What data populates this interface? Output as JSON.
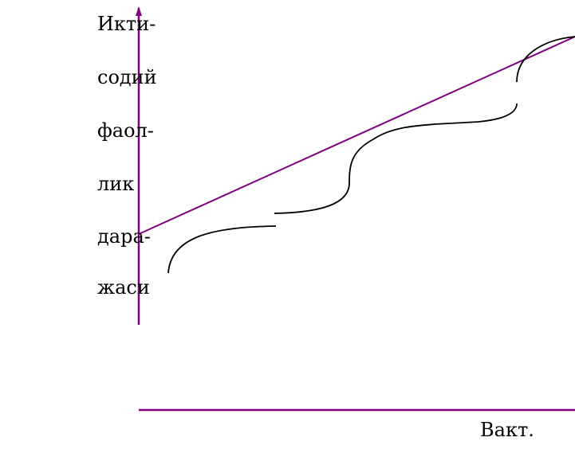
{
  "diagram": {
    "y_axis_label_lines": [
      "Икти-",
      "содий",
      "фаол-",
      "лик",
      "дара-",
      "жаси"
    ],
    "x_axis_label": "Вакт.",
    "colors": {
      "axis": "#800080",
      "trend_line": "#800080",
      "curve": "#000000",
      "background": "#ffffff"
    }
  }
}
